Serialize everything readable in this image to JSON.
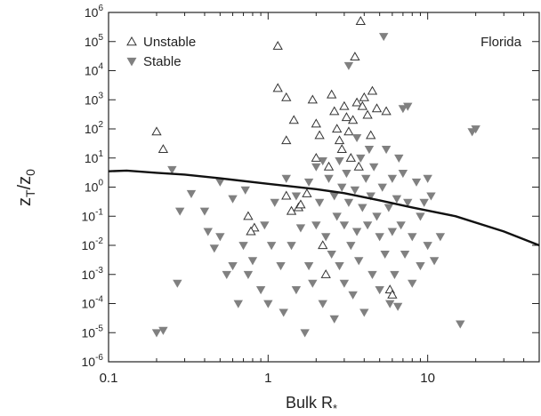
{
  "chart_data": {
    "type": "scatter",
    "annotation": "Florida",
    "xlabel": {
      "main": "Bulk R",
      "sub": "*"
    },
    "ylabel": {
      "a": "z",
      "a_sub": "T",
      "slash": "/",
      "b": "z",
      "b_sub": "0"
    },
    "xscale": "log",
    "yscale": "log",
    "xlim": [
      0.1,
      50
    ],
    "ylim": [
      1e-06,
      1000000.0
    ],
    "x_ticks": [
      {
        "value": 0.1,
        "label": "0.1"
      },
      {
        "value": 1,
        "label": "1"
      },
      {
        "value": 10,
        "label": "10"
      }
    ],
    "y_ticks": [
      {
        "exp": -6,
        "label": "10",
        "sup": "-6"
      },
      {
        "exp": -5,
        "label": "10",
        "sup": "-5"
      },
      {
        "exp": -4,
        "label": "10",
        "sup": "-4"
      },
      {
        "exp": -3,
        "label": "10",
        "sup": "-3"
      },
      {
        "exp": -2,
        "label": "10",
        "sup": "-2"
      },
      {
        "exp": -1,
        "label": "10",
        "sup": "-1"
      },
      {
        "exp": 0,
        "label": "10",
        "sup": "0"
      },
      {
        "exp": 1,
        "label": "10",
        "sup": "1"
      },
      {
        "exp": 2,
        "label": "10",
        "sup": "2"
      },
      {
        "exp": 3,
        "label": "10",
        "sup": "3"
      },
      {
        "exp": 4,
        "label": "10",
        "sup": "4"
      },
      {
        "exp": 5,
        "label": "10",
        "sup": "5"
      },
      {
        "exp": 6,
        "label": "10",
        "sup": "6"
      }
    ],
    "grid": false,
    "legend_position": "top-left",
    "legend": [
      {
        "label": "Unstable",
        "marker": "open-triangle-up",
        "color": "#333333"
      },
      {
        "label": "Stable",
        "marker": "filled-triangle-down",
        "color": "#808080"
      }
    ],
    "series": [
      {
        "name": "Unstable",
        "marker": "open-triangle-up",
        "color": "#333333",
        "points": [
          [
            0.2,
            80
          ],
          [
            0.22,
            20
          ],
          [
            0.75,
            0.1
          ],
          [
            0.82,
            0.04
          ],
          [
            0.78,
            0.03
          ],
          [
            1.15,
            70000
          ],
          [
            1.15,
            2500
          ],
          [
            1.3,
            1200
          ],
          [
            1.45,
            200
          ],
          [
            1.3,
            40
          ],
          [
            1.3,
            0.5
          ],
          [
            1.4,
            0.15
          ],
          [
            1.55,
            0.2
          ],
          [
            1.6,
            0.25
          ],
          [
            1.75,
            0.6
          ],
          [
            1.9,
            1000
          ],
          [
            2.0,
            150
          ],
          [
            2.1,
            60
          ],
          [
            2.0,
            10
          ],
          [
            2.2,
            0.01
          ],
          [
            2.3,
            0.001
          ],
          [
            2.5,
            1500
          ],
          [
            2.6,
            400
          ],
          [
            2.7,
            100
          ],
          [
            2.8,
            40
          ],
          [
            2.9,
            20
          ],
          [
            3.0,
            600
          ],
          [
            3.1,
            250
          ],
          [
            3.2,
            80
          ],
          [
            3.4,
            200
          ],
          [
            3.5,
            30000
          ],
          [
            3.6,
            800
          ],
          [
            3.8,
            500000
          ],
          [
            3.9,
            600
          ],
          [
            4.0,
            1200
          ],
          [
            4.2,
            300
          ],
          [
            4.5,
            2000
          ],
          [
            4.8,
            500
          ],
          [
            3.3,
            10
          ],
          [
            3.7,
            5
          ],
          [
            5.5,
            400
          ],
          [
            4.4,
            60
          ],
          [
            5.8,
            0.0003
          ],
          [
            6.0,
            0.0002
          ],
          [
            2.4,
            5
          ]
        ]
      },
      {
        "name": "Stable",
        "marker": "filled-triangle-down",
        "color": "#808080",
        "points": [
          [
            0.25,
            4
          ],
          [
            0.2,
            1e-05
          ],
          [
            0.22,
            1.2e-05
          ],
          [
            0.27,
            0.0005
          ],
          [
            0.28,
            0.15
          ],
          [
            0.33,
            0.6
          ],
          [
            0.4,
            0.15
          ],
          [
            0.42,
            0.03
          ],
          [
            0.46,
            0.008
          ],
          [
            0.5,
            0.02
          ],
          [
            0.5,
            1.5
          ],
          [
            0.55,
            0.001
          ],
          [
            0.6,
            0.002
          ],
          [
            0.6,
            0.4
          ],
          [
            0.65,
            0.0001
          ],
          [
            0.7,
            0.01
          ],
          [
            0.72,
            0.8
          ],
          [
            0.75,
            0.001
          ],
          [
            0.8,
            0.003
          ],
          [
            0.9,
            0.0003
          ],
          [
            0.95,
            0.05
          ],
          [
            1.0,
            0.0001
          ],
          [
            1.05,
            0.01
          ],
          [
            1.1,
            0.3
          ],
          [
            1.2,
            0.002
          ],
          [
            1.25,
            5e-05
          ],
          [
            1.4,
            0.01
          ],
          [
            1.5,
            0.5
          ],
          [
            1.5,
            0.0003
          ],
          [
            1.6,
            0.04
          ],
          [
            1.7,
            1e-05
          ],
          [
            1.8,
            0.002
          ],
          [
            1.9,
            0.0005
          ],
          [
            2.0,
            5
          ],
          [
            2.0,
            0.05
          ],
          [
            2.1,
            0.3
          ],
          [
            2.2,
            0.0001
          ],
          [
            2.3,
            0.02
          ],
          [
            2.4,
            2
          ],
          [
            2.5,
            0.005
          ],
          [
            2.6,
            0.5
          ],
          [
            2.6,
            3e-05
          ],
          [
            2.7,
            0.1
          ],
          [
            2.8,
            0.002
          ],
          [
            2.9,
            1
          ],
          [
            3.0,
            0.05
          ],
          [
            3.0,
            0.0005
          ],
          [
            3.1,
            3
          ],
          [
            3.2,
            0.3
          ],
          [
            3.3,
            0.01
          ],
          [
            3.4,
            0.0002
          ],
          [
            3.5,
            0.8
          ],
          [
            3.6,
            0.03
          ],
          [
            3.7,
            0.003
          ],
          [
            3.8,
            10
          ],
          [
            3.9,
            0.2
          ],
          [
            4.0,
            5e-05
          ],
          [
            4.1,
            2
          ],
          [
            4.2,
            0.05
          ],
          [
            4.4,
            0.5
          ],
          [
            4.5,
            0.001
          ],
          [
            4.6,
            5
          ],
          [
            4.8,
            0.1
          ],
          [
            5.0,
            0.02
          ],
          [
            5.0,
            0.0003
          ],
          [
            5.2,
            1
          ],
          [
            5.3,
            150000
          ],
          [
            5.4,
            0.005
          ],
          [
            5.5,
            20
          ],
          [
            5.7,
            0.2
          ],
          [
            5.8,
            0.0001
          ],
          [
            6.0,
            2
          ],
          [
            6.0,
            0.03
          ],
          [
            6.2,
            0.001
          ],
          [
            6.4,
            0.4
          ],
          [
            6.5,
            8e-05
          ],
          [
            6.8,
            0.05
          ],
          [
            7.0,
            500
          ],
          [
            7.0,
            3
          ],
          [
            7.2,
            0.005
          ],
          [
            7.5,
            0.3
          ],
          [
            7.5,
            600
          ],
          [
            8.0,
            0.02
          ],
          [
            8.0,
            0.0005
          ],
          [
            8.5,
            1.5
          ],
          [
            9.0,
            0.1
          ],
          [
            9.0,
            0.002
          ],
          [
            9.5,
            0.3
          ],
          [
            10.0,
            2
          ],
          [
            10.0,
            0.01
          ],
          [
            10.5,
            0.5
          ],
          [
            11.0,
            0.003
          ],
          [
            12.0,
            0.02
          ],
          [
            16.0,
            2e-05
          ],
          [
            19.0,
            80
          ],
          [
            20.0,
            100
          ],
          [
            3.2,
            15000
          ],
          [
            4.3,
            20
          ],
          [
            2.8,
            8
          ],
          [
            3.6,
            50
          ],
          [
            6.6,
            10
          ],
          [
            1.3,
            2
          ],
          [
            1.8,
            1.5
          ],
          [
            2.2,
            8
          ]
        ]
      }
    ],
    "fit_line": {
      "color": "#111111",
      "points": [
        [
          0.1,
          3.5
        ],
        [
          0.13,
          3.7
        ],
        [
          0.2,
          3.1
        ],
        [
          0.3,
          2.7
        ],
        [
          0.5,
          2.0
        ],
        [
          1,
          1.3
        ],
        [
          2,
          0.85
        ],
        [
          3,
          0.62
        ],
        [
          5,
          0.35
        ],
        [
          8,
          0.2
        ],
        [
          15,
          0.1
        ],
        [
          30,
          0.03
        ],
        [
          50,
          0.01
        ]
      ]
    }
  }
}
